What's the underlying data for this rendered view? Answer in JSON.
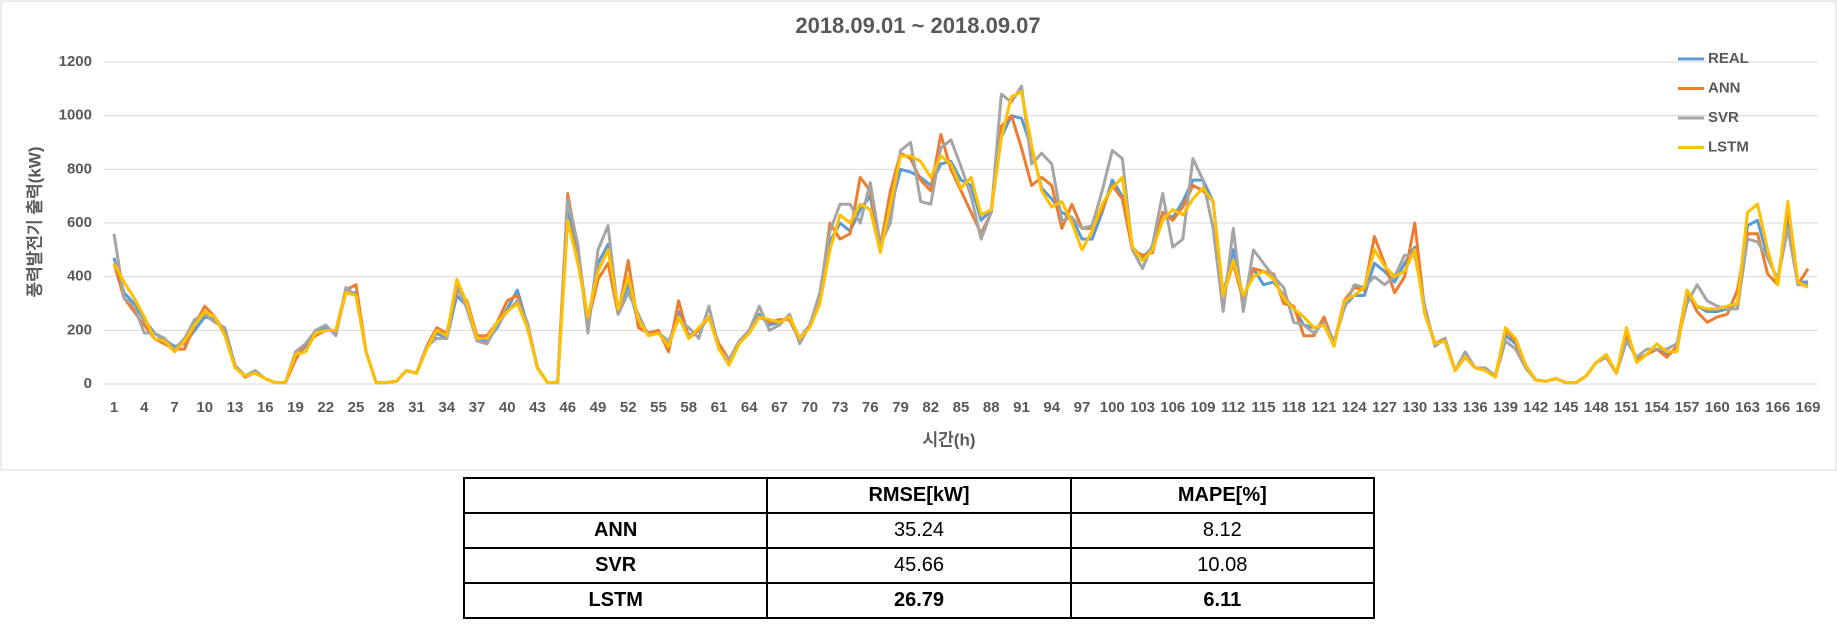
{
  "chart_data": {
    "type": "line",
    "title": "2018.09.01 ~ 2018.09.07",
    "x_label": "시간(h)",
    "y_label": "풍력발전기 출력(kW)",
    "x": [
      1,
      2,
      3,
      4,
      5,
      6,
      7,
      8,
      9,
      10,
      11,
      12,
      13,
      14,
      15,
      16,
      17,
      18,
      19,
      20,
      21,
      22,
      23,
      24,
      25,
      26,
      27,
      28,
      29,
      30,
      31,
      32,
      33,
      34,
      35,
      36,
      37,
      38,
      39,
      40,
      41,
      42,
      43,
      44,
      45,
      46,
      47,
      48,
      49,
      50,
      51,
      52,
      53,
      54,
      55,
      56,
      57,
      58,
      59,
      60,
      61,
      62,
      63,
      64,
      65,
      66,
      67,
      68,
      69,
      70,
      71,
      72,
      73,
      74,
      75,
      76,
      77,
      78,
      79,
      80,
      81,
      82,
      83,
      84,
      85,
      86,
      87,
      88,
      89,
      90,
      91,
      92,
      93,
      94,
      95,
      96,
      97,
      98,
      99,
      100,
      101,
      102,
      103,
      104,
      105,
      106,
      107,
      108,
      109,
      110,
      111,
      112,
      113,
      114,
      115,
      116,
      117,
      118,
      119,
      120,
      121,
      122,
      123,
      124,
      125,
      126,
      127,
      128,
      129,
      130,
      131,
      132,
      133,
      134,
      135,
      136,
      137,
      138,
      139,
      140,
      141,
      142,
      143,
      144,
      145,
      146,
      147,
      148,
      149,
      150,
      151,
      152,
      153,
      154,
      155,
      156,
      157,
      158,
      159,
      160,
      161,
      162,
      163,
      164,
      165,
      166,
      167,
      168,
      169
    ],
    "xlim": [
      1,
      169
    ],
    "xticks": [
      1,
      4,
      7,
      10,
      13,
      16,
      19,
      22,
      25,
      28,
      31,
      34,
      37,
      40,
      43,
      46,
      49,
      52,
      55,
      58,
      61,
      64,
      67,
      70,
      73,
      76,
      79,
      82,
      85,
      88,
      91,
      94,
      97,
      100,
      103,
      106,
      109,
      112,
      115,
      118,
      121,
      124,
      127,
      130,
      133,
      136,
      139,
      142,
      145,
      148,
      151,
      154,
      157,
      160,
      163,
      166,
      169
    ],
    "ylim": [
      0,
      1200
    ],
    "yticks": [
      0,
      200,
      400,
      600,
      800,
      1000,
      1200
    ],
    "grid": true,
    "legend": "top-right",
    "series": [
      {
        "name": "REAL",
        "color": "#5b9bd5",
        "values": [
          470,
          340,
          300,
          240,
          190,
          165,
          140,
          150,
          200,
          250,
          240,
          200,
          70,
          30,
          45,
          20,
          5,
          5,
          100,
          140,
          190,
          210,
          190,
          340,
          340,
          120,
          5,
          5,
          10,
          50,
          40,
          130,
          190,
          170,
          330,
          290,
          170,
          160,
          210,
          280,
          350,
          220,
          60,
          5,
          5,
          640,
          480,
          230,
          450,
          520,
          270,
          370,
          230,
          190,
          190,
          150,
          270,
          180,
          200,
          250,
          140,
          80,
          150,
          190,
          260,
          220,
          230,
          250,
          170,
          220,
          310,
          530,
          600,
          570,
          650,
          700,
          500,
          650,
          800,
          790,
          770,
          740,
          820,
          830,
          760,
          740,
          610,
          650,
          920,
          1000,
          990,
          880,
          730,
          690,
          640,
          620,
          540,
          540,
          640,
          760,
          700,
          510,
          470,
          510,
          640,
          620,
          680,
          760,
          760,
          680,
          330,
          500,
          320,
          430,
          370,
          380,
          330,
          280,
          220,
          210,
          220,
          150,
          290,
          330,
          330,
          450,
          420,
          380,
          450,
          510,
          270,
          150,
          160,
          50,
          100,
          60,
          55,
          30,
          180,
          150,
          60,
          15,
          10,
          20,
          5,
          5,
          30,
          80,
          100,
          40,
          180,
          90,
          110,
          130,
          110,
          130,
          330,
          290,
          270,
          270,
          280,
          300,
          590,
          610,
          470,
          390,
          620,
          380,
          380
        ]
      },
      {
        "name": "ANN",
        "color": "#ed7d31",
        "values": [
          450,
          320,
          270,
          220,
          170,
          150,
          130,
          130,
          220,
          290,
          250,
          190,
          70,
          25,
          45,
          20,
          5,
          5,
          90,
          150,
          180,
          200,
          200,
          350,
          370,
          120,
          5,
          5,
          10,
          50,
          40,
          140,
          210,
          190,
          350,
          310,
          180,
          180,
          230,
          310,
          330,
          210,
          60,
          5,
          5,
          710,
          500,
          230,
          390,
          450,
          260,
          460,
          210,
          190,
          200,
          120,
          310,
          170,
          200,
          250,
          150,
          90,
          160,
          190,
          250,
          230,
          240,
          240,
          160,
          220,
          320,
          600,
          540,
          560,
          770,
          720,
          510,
          720,
          860,
          840,
          760,
          720,
          930,
          800,
          720,
          640,
          560,
          640,
          960,
          1000,
          880,
          740,
          770,
          740,
          580,
          670,
          580,
          580,
          650,
          740,
          690,
          500,
          480,
          490,
          640,
          610,
          660,
          740,
          720,
          680,
          330,
          450,
          310,
          430,
          420,
          410,
          300,
          290,
          180,
          180,
          250,
          150,
          310,
          360,
          350,
          550,
          450,
          340,
          400,
          600,
          270,
          150,
          170,
          50,
          100,
          60,
          55,
          30,
          200,
          160,
          70,
          15,
          10,
          20,
          5,
          5,
          30,
          80,
          100,
          40,
          190,
          90,
          110,
          130,
          100,
          140,
          350,
          270,
          230,
          250,
          260,
          350,
          560,
          560,
          410,
          370,
          660,
          370,
          430
        ]
      },
      {
        "name": "SVR",
        "color": "#a5a5a5",
        "values": [
          560,
          320,
          290,
          190,
          190,
          170,
          130,
          170,
          240,
          260,
          230,
          210,
          70,
          30,
          50,
          20,
          5,
          5,
          120,
          150,
          200,
          220,
          180,
          360,
          330,
          120,
          5,
          5,
          10,
          50,
          40,
          140,
          170,
          170,
          370,
          280,
          160,
          150,
          220,
          270,
          310,
          230,
          60,
          5,
          5,
          690,
          520,
          190,
          500,
          590,
          260,
          340,
          260,
          180,
          190,
          160,
          240,
          210,
          170,
          290,
          130,
          90,
          160,
          200,
          290,
          200,
          220,
          260,
          150,
          220,
          340,
          570,
          670,
          670,
          600,
          750,
          520,
          600,
          870,
          900,
          680,
          670,
          880,
          910,
          810,
          700,
          540,
          640,
          1080,
          1050,
          1110,
          820,
          860,
          820,
          610,
          620,
          580,
          590,
          720,
          870,
          840,
          500,
          430,
          520,
          710,
          510,
          540,
          840,
          760,
          580,
          270,
          580,
          270,
          500,
          450,
          400,
          360,
          230,
          220,
          190,
          230,
          160,
          280,
          370,
          360,
          400,
          370,
          400,
          480,
          480,
          290,
          140,
          170,
          50,
          120,
          60,
          60,
          30,
          160,
          130,
          60,
          15,
          10,
          20,
          5,
          5,
          30,
          80,
          100,
          40,
          160,
          100,
          130,
          130,
          130,
          150,
          300,
          370,
          310,
          290,
          280,
          280,
          540,
          530,
          470,
          390,
          580,
          370,
          370
        ]
      },
      {
        "name": "LSTM",
        "color": "#ffc000",
        "values": [
          450,
          380,
          320,
          250,
          170,
          160,
          120,
          160,
          220,
          270,
          250,
          180,
          60,
          30,
          40,
          20,
          5,
          5,
          110,
          120,
          190,
          200,
          200,
          340,
          330,
          120,
          5,
          5,
          10,
          50,
          40,
          130,
          200,
          180,
          390,
          300,
          170,
          170,
          230,
          270,
          300,
          210,
          60,
          5,
          5,
          610,
          450,
          250,
          420,
          500,
          280,
          400,
          240,
          180,
          190,
          140,
          250,
          170,
          210,
          250,
          130,
          70,
          150,
          190,
          250,
          240,
          230,
          250,
          170,
          210,
          300,
          500,
          630,
          600,
          670,
          650,
          490,
          670,
          850,
          850,
          830,
          770,
          850,
          820,
          730,
          770,
          630,
          650,
          920,
          1070,
          1090,
          890,
          720,
          660,
          680,
          600,
          500,
          570,
          670,
          730,
          770,
          510,
          460,
          500,
          610,
          650,
          630,
          690,
          730,
          680,
          330,
          460,
          330,
          400,
          420,
          390,
          320,
          280,
          250,
          210,
          220,
          140,
          310,
          330,
          360,
          500,
          440,
          400,
          420,
          500,
          260,
          150,
          160,
          50,
          100,
          60,
          50,
          25,
          210,
          170,
          70,
          15,
          10,
          20,
          5,
          5,
          30,
          80,
          110,
          40,
          210,
          80,
          110,
          150,
          120,
          120,
          350,
          290,
          280,
          280,
          290,
          300,
          640,
          670,
          500,
          370,
          680,
          380,
          360
        ]
      }
    ]
  },
  "table": {
    "columns": [
      "RMSE[kW]",
      "MAPE[%]"
    ],
    "rows": [
      [
        "ANN",
        "35.24",
        "8.12"
      ],
      [
        "SVR",
        "45.66",
        "10.08"
      ],
      [
        "LSTM",
        "26.79",
        "6.11"
      ]
    ]
  }
}
